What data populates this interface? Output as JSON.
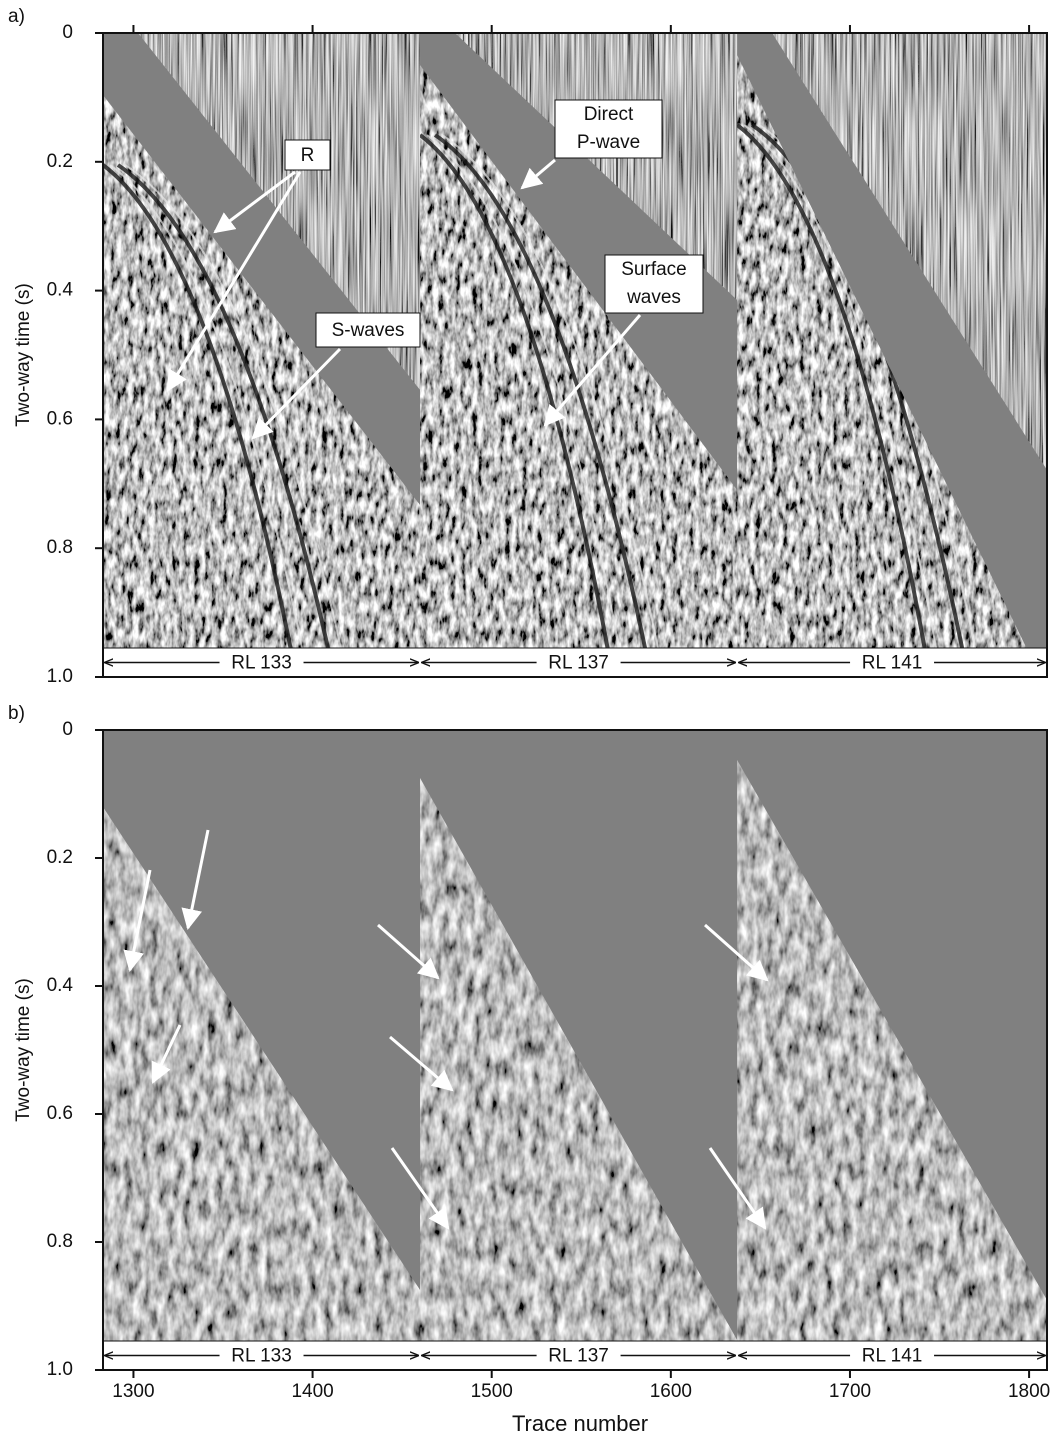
{
  "chart_data": [
    {
      "type": "seismic",
      "panel_label": "a)",
      "ylabel": "Two-way time (s)",
      "xlim": [
        1283,
        1810
      ],
      "ylim": [
        0,
        1
      ],
      "xticks": [
        1300,
        1400,
        1500,
        1600,
        1700,
        1800
      ],
      "yticks": [
        0,
        0.2,
        0.4,
        0.6,
        0.8,
        {
          "value": 1,
          "label": "1.0"
        }
      ],
      "segments": [
        {
          "label": "RL 133",
          "range": [
            1283,
            1460
          ]
        },
        {
          "label": "RL 137",
          "range": [
            1460,
            1637
          ]
        },
        {
          "label": "RL 141",
          "range": [
            1637,
            1810
          ]
        }
      ],
      "annotations": [
        {
          "text": "R"
        },
        {
          "text": [
            "Direct",
            "P-wave"
          ]
        },
        {
          "text": [
            "Surface",
            "waves"
          ]
        },
        {
          "text": "S-waves"
        }
      ]
    },
    {
      "type": "seismic",
      "panel_label": "b)",
      "ylabel": "Two-way time (s)",
      "xlabel": "Trace number",
      "xlim": [
        1283,
        1810
      ],
      "ylim": [
        0,
        1
      ],
      "xticks": [
        1300,
        1400,
        1500,
        1600,
        1700,
        1800
      ],
      "yticks": [
        0,
        0.2,
        0.4,
        0.6,
        0.8,
        {
          "value": 1,
          "label": "1.0"
        }
      ],
      "segments": [
        {
          "label": "RL 133",
          "range": [
            1283,
            1460
          ]
        },
        {
          "label": "RL 137",
          "range": [
            1460,
            1637
          ]
        },
        {
          "label": "RL 141",
          "range": [
            1637,
            1810
          ]
        }
      ]
    }
  ]
}
